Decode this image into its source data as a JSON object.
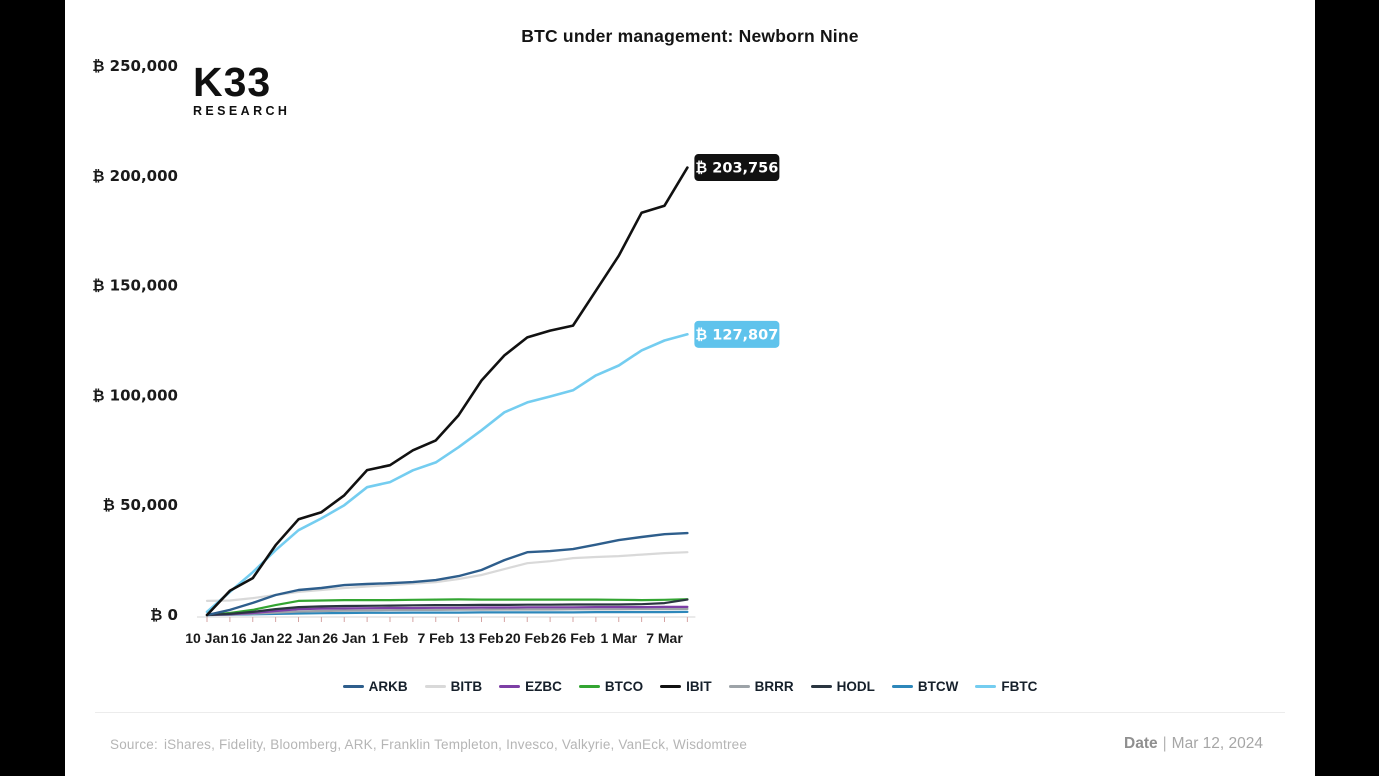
{
  "header": {
    "logo_k33": "K33",
    "logo_research": "RESEARCH"
  },
  "chart_data": {
    "type": "line",
    "title": "BTC under management: Newborn Nine",
    "x_tick_labels": [
      "10 Jan",
      "16 Jan",
      "22 Jan",
      "26 Jan",
      "1 Feb",
      "7 Feb",
      "13 Feb",
      "20 Feb",
      "26 Feb",
      "1 Mar",
      "7 Mar"
    ],
    "x_index_step": 0.5,
    "x_end_index": 10.5,
    "ylim": [
      0,
      250000
    ],
    "y_ticks": [
      0,
      50000,
      100000,
      150000,
      200000,
      250000
    ],
    "y_tick_labels": [
      "₿ 0",
      "₿ 50,000",
      "₿ 100,000",
      "₿ 150,000",
      "₿ 200,000",
      "₿ 250,000"
    ],
    "grid": false,
    "legend_position": "bottom",
    "axis_color": "#d6d6d6",
    "tick_color": "#d4a3a3",
    "label_color": "#1a1a1a",
    "series": [
      {
        "name": "ARKB",
        "color": "#2e5e8c",
        "width": 2.4,
        "values": [
          0,
          2300,
          5500,
          9100,
          11400,
          12300,
          13600,
          14100,
          14500,
          15000,
          15900,
          17700,
          20500,
          25000,
          28600,
          29100,
          30000,
          32000,
          34100,
          35500,
          36800,
          37300
        ]
      },
      {
        "name": "BITB",
        "color": "#d9d9d9",
        "width": 2.2,
        "values": [
          6400,
          6600,
          7700,
          9100,
          10500,
          11400,
          12300,
          13000,
          13600,
          14300,
          15000,
          16400,
          18200,
          20900,
          23600,
          24500,
          25900,
          26400,
          26800,
          27500,
          28200,
          28600
        ]
      },
      {
        "name": "EZBC",
        "color": "#7d3fa5",
        "width": 2.2,
        "values": [
          0,
          300,
          900,
          1800,
          2700,
          2900,
          3000,
          3100,
          3200,
          3200,
          3300,
          3300,
          3400,
          3400,
          3500,
          3500,
          3500,
          3600,
          3600,
          3600,
          3700,
          3700
        ]
      },
      {
        "name": "BTCO",
        "color": "#33a532",
        "width": 2.2,
        "values": [
          0,
          900,
          2300,
          4500,
          6400,
          6600,
          6800,
          6800,
          6800,
          6900,
          7000,
          7100,
          7000,
          7000,
          7000,
          7000,
          7000,
          7000,
          6900,
          6800,
          6900,
          7200
        ]
      },
      {
        "name": "IBIT",
        "color": "#111111",
        "width": 2.6,
        "values": [
          0,
          11000,
          16800,
          31800,
          43600,
          46800,
          54500,
          66000,
          68200,
          75000,
          79500,
          91000,
          106800,
          118200,
          126400,
          129500,
          131800,
          147700,
          163600,
          183200,
          186400,
          203756
        ]
      },
      {
        "name": "BRRR",
        "color": "#9da3a8",
        "width": 2.2,
        "values": [
          0,
          200,
          600,
          1100,
          1600,
          1800,
          2000,
          2100,
          2200,
          2300,
          2300,
          2400,
          2400,
          2500,
          2500,
          2500,
          2600,
          2600,
          2600,
          2700,
          2700,
          2800
        ]
      },
      {
        "name": "HODL",
        "color": "#2a3540",
        "width": 2.2,
        "values": [
          0,
          500,
          1400,
          2700,
          3600,
          3900,
          4100,
          4200,
          4300,
          4400,
          4500,
          4500,
          4600,
          4600,
          4700,
          4700,
          4800,
          4800,
          4800,
          4900,
          5400,
          7000
        ]
      },
      {
        "name": "BTCW",
        "color": "#2d87ba",
        "width": 2.2,
        "values": [
          0,
          100,
          300,
          500,
          700,
          800,
          900,
          1000,
          1000,
          1100,
          1100,
          1100,
          1200,
          1200,
          1200,
          1200,
          1200,
          1300,
          1300,
          1300,
          1300,
          1400
        ]
      },
      {
        "name": "FBTC",
        "color": "#74cdf0",
        "width": 2.6,
        "values": [
          1400,
          10500,
          19500,
          29500,
          38600,
          44000,
          50000,
          58200,
          60500,
          65900,
          69500,
          76400,
          84100,
          92300,
          96800,
          99500,
          102300,
          109100,
          113600,
          120500,
          125000,
          127807
        ]
      }
    ],
    "draw_order": [
      "BTCW",
      "BRRR",
      "EZBC",
      "BITB",
      "BTCO",
      "HODL",
      "ARKB",
      "FBTC",
      "IBIT"
    ],
    "annotations": [
      {
        "series": "IBIT",
        "label": "₿ 203,756",
        "bg": "#111111",
        "text_color": "#ffffff"
      },
      {
        "series": "FBTC",
        "label": "₿ 127,807",
        "bg": "#5fc3ec",
        "text_color": "#ffffff"
      }
    ]
  },
  "footer": {
    "source_label": "Source:",
    "source_text": "iShares, Fidelity, Bloomberg, ARK, Franklin Templeton, Invesco, Valkyrie, VanEck, Wisdomtree",
    "date_label": "Date",
    "date_separator": "|",
    "date_value": "Mar 12, 2024"
  }
}
